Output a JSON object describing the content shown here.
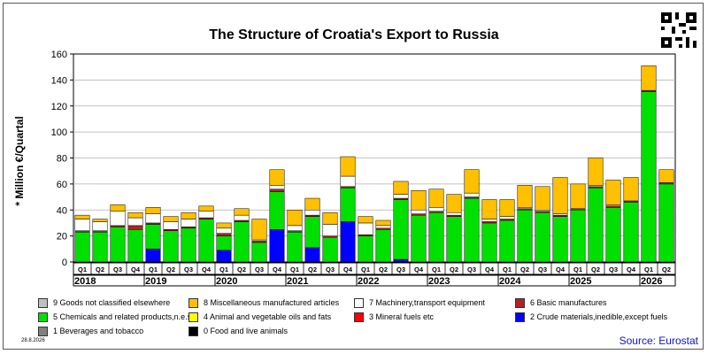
{
  "title": "The Structure of Croatia's Export to Russia",
  "date_stamp": "28.8.2026",
  "source": "Source: Eurostat",
  "chart_data": {
    "type": "bar",
    "stacked": true,
    "title": "The Structure of Croatia's Export to Russia",
    "ylabel": "* Million €/Quartal",
    "xlabel": "",
    "ylim": [
      0,
      160
    ],
    "yticks": [
      0,
      20,
      40,
      60,
      80,
      100,
      120,
      140,
      160
    ],
    "grid": true,
    "years": [
      "2018",
      "2019",
      "2020",
      "2021",
      "2022",
      "2023",
      "2024",
      "2025",
      "2026"
    ],
    "categories": [
      "Q1",
      "Q2",
      "Q3",
      "Q4",
      "Q1",
      "Q2",
      "Q3",
      "Q4",
      "Q1",
      "Q2",
      "Q3",
      "Q4",
      "Q1",
      "Q2",
      "Q3",
      "Q4",
      "Q1",
      "Q2",
      "Q3",
      "Q4",
      "Q1",
      "Q2",
      "Q3",
      "Q4",
      "Q1",
      "Q2",
      "Q3",
      "Q4",
      "Q1",
      "Q2",
      "Q3",
      "Q4",
      "Q1",
      "Q2"
    ],
    "series": [
      {
        "name": "0 Food and live animals",
        "color": "#000000",
        "values": [
          0,
          0,
          0,
          0,
          0,
          0,
          0,
          0,
          0,
          0,
          0,
          0,
          0,
          0,
          0,
          0,
          0,
          0,
          0,
          0,
          0,
          0,
          0,
          0,
          0,
          0,
          0,
          0,
          0,
          0,
          0,
          0,
          0,
          0
        ]
      },
      {
        "name": "1 Beverages and tobacco",
        "color": "#808080",
        "values": [
          0,
          0,
          0,
          0,
          0,
          0,
          0,
          0,
          0,
          0,
          0,
          0,
          0,
          0,
          0,
          0,
          0,
          0,
          0,
          0,
          0,
          0,
          0,
          0,
          0,
          0,
          0,
          0,
          0,
          0,
          0,
          0,
          0,
          0
        ]
      },
      {
        "name": "2 Crude materials,inedible,except fuels",
        "color": "#0000ff",
        "values": [
          0,
          0,
          0,
          0,
          10,
          0,
          0,
          0,
          9,
          0,
          0,
          25,
          0,
          11,
          0,
          31,
          0,
          0,
          2,
          0,
          0,
          0,
          0,
          0,
          0,
          0,
          0,
          0,
          0,
          0,
          0,
          0,
          0,
          0
        ]
      },
      {
        "name": "3 Mineral fuels etc",
        "color": "#ff0000",
        "values": [
          0,
          0,
          0,
          0,
          0,
          0,
          0,
          0,
          0,
          0,
          0,
          0,
          0,
          0,
          0,
          0,
          0,
          0,
          0,
          0,
          0,
          0,
          0,
          0,
          0,
          0,
          0,
          0,
          0,
          0,
          0,
          0,
          0,
          0
        ]
      },
      {
        "name": "4 Animal and vegetable oils and fats",
        "color": "#ffff00",
        "values": [
          0,
          0,
          0,
          0,
          0,
          0,
          0,
          0,
          0,
          0,
          0,
          0,
          0,
          0,
          0,
          0,
          0,
          0,
          0,
          0,
          0,
          0,
          0,
          0,
          0,
          0,
          0,
          0,
          0,
          0,
          0,
          0,
          0,
          0
        ]
      },
      {
        "name": "5 Chemicals and related products,n.e.s.",
        "color": "#00e000",
        "values": [
          23,
          23,
          27,
          25,
          19,
          24,
          26,
          33,
          11,
          31,
          15,
          29,
          23,
          24,
          19,
          26,
          20,
          25,
          46,
          36,
          38,
          35,
          49,
          30,
          32,
          40,
          38,
          35,
          40,
          57,
          42,
          46,
          131,
          60
        ]
      },
      {
        "name": "6 Basic manufactures",
        "color": "#b22222",
        "values": [
          1,
          1,
          1,
          3,
          1,
          1,
          1,
          1,
          2,
          1,
          1,
          2,
          1,
          1,
          1,
          1,
          1,
          1,
          1,
          1,
          1,
          1,
          1,
          1,
          1,
          1,
          1,
          1,
          1,
          1,
          1,
          1,
          1,
          1
        ]
      },
      {
        "name": "7 Machinery,transport equipment",
        "color": "#ffffff",
        "values": [
          9,
          7,
          11,
          6,
          7,
          6,
          6,
          5,
          4,
          4,
          1,
          3,
          4,
          4,
          9,
          8,
          9,
          2,
          3,
          3,
          3,
          2,
          3,
          2,
          2,
          1,
          1,
          1,
          0,
          1,
          1,
          0,
          0,
          0
        ]
      },
      {
        "name": "8 Miscellaneous manufactured articles",
        "color": "#ffc000",
        "values": [
          3,
          2,
          5,
          4,
          5,
          4,
          5,
          4,
          4,
          5,
          16,
          12,
          12,
          9,
          9,
          15,
          5,
          4,
          10,
          15,
          14,
          14,
          18,
          15,
          13,
          17,
          18,
          28,
          19,
          21,
          19,
          18,
          19,
          10
        ]
      },
      {
        "name": "9 Goods not classified elsewhere",
        "color": "#c0c0c0",
        "values": [
          0,
          0,
          0,
          0,
          0,
          0,
          0,
          0,
          0,
          0,
          0,
          0,
          0,
          0,
          0,
          0,
          0,
          0,
          0,
          0,
          0,
          0,
          0,
          0,
          0,
          0,
          0,
          0,
          0,
          0,
          0,
          0,
          0,
          0
        ]
      }
    ],
    "legend": [
      {
        "label": "9 Goods not classified elsewhere",
        "color": "#c0c0c0"
      },
      {
        "label": "8 Miscellaneous manufactured articles",
        "color": "#ffc000"
      },
      {
        "label": "7 Machinery,transport equipment",
        "color": "#ffffff"
      },
      {
        "label": "6 Basic manufactures",
        "color": "#b22222"
      },
      {
        "label": "5 Chemicals and related products,n.e.s.",
        "color": "#00e000"
      },
      {
        "label": "4 Animal and vegetable oils and fats",
        "color": "#ffff00"
      },
      {
        "label": "3 Mineral fuels etc",
        "color": "#ff0000"
      },
      {
        "label": "2 Crude materials,inedible,except fuels",
        "color": "#0000ff"
      },
      {
        "label": "1 Beverages and tobacco",
        "color": "#808080"
      },
      {
        "label": "0 Food and live animals",
        "color": "#000000"
      }
    ],
    "legend_position": "bottom"
  }
}
